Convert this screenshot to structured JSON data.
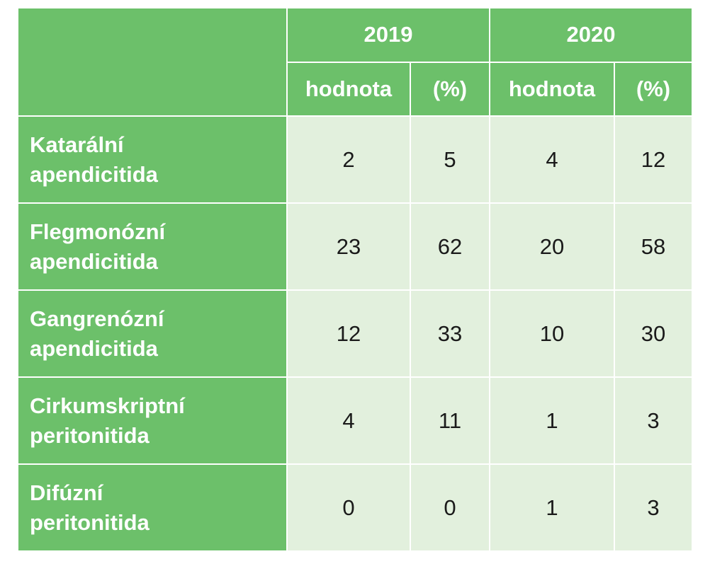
{
  "colors": {
    "header_green": "#6cc06a",
    "cell_light_green": "#e2f0dd"
  },
  "table": {
    "years": [
      "2019",
      "2020"
    ],
    "subheaders": [
      "hodnota",
      "(%)",
      "hodnota",
      "(%)"
    ],
    "rows": [
      {
        "label_1": "Katarální",
        "label_2": "apendicitida",
        "values": [
          "2",
          "5",
          "4",
          "12"
        ]
      },
      {
        "label_1": "Flegmonózní",
        "label_2": "apendicitida",
        "values": [
          "23",
          "62",
          "20",
          "58"
        ]
      },
      {
        "label_1": "Gangrenózní",
        "label_2": "apendicitida",
        "values": [
          "12",
          "33",
          "10",
          "30"
        ]
      },
      {
        "label_1": "Cirkumskriptní",
        "label_2": "peritonitida",
        "values": [
          "4",
          "11",
          "1",
          "3"
        ]
      },
      {
        "label_1": "Difúzní",
        "label_2": "peritonitida",
        "values": [
          "0",
          "0",
          "1",
          "3"
        ]
      }
    ]
  }
}
